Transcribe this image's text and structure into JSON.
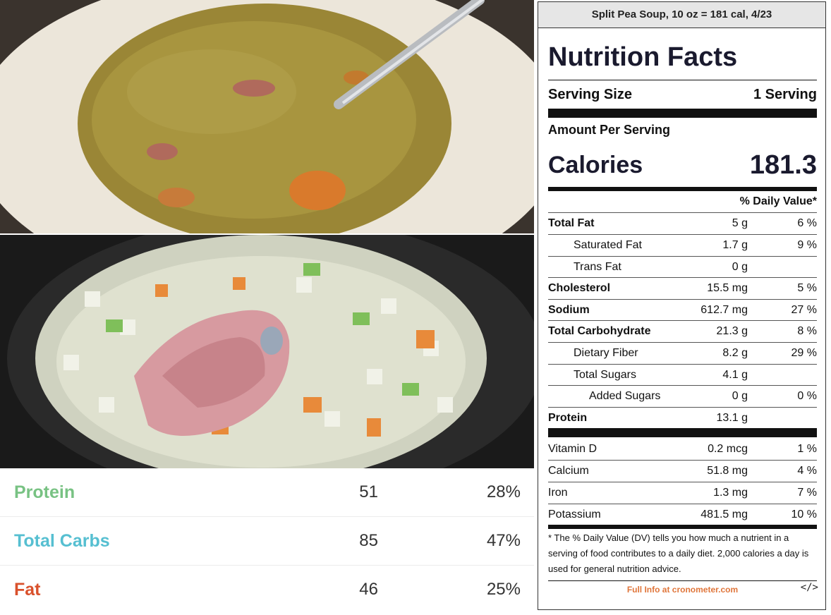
{
  "macros": [
    {
      "name": "Protein",
      "grams": "51",
      "percent": "28%",
      "color": "#78c283"
    },
    {
      "name": "Total Carbs",
      "grams": "85",
      "percent": "47%",
      "color": "#56bfd1"
    },
    {
      "name": "Fat",
      "grams": "46",
      "percent": "25%",
      "color": "#d9512c"
    }
  ],
  "label": {
    "header": "Split Pea Soup, 10 oz = 181 cal, 4/23",
    "title": "Nutrition Facts",
    "serving_size_label": "Serving Size",
    "serving_size_value": "1 Serving",
    "amount_per_serving": "Amount Per Serving",
    "calories_label": "Calories",
    "calories_value": "181.3",
    "daily_value_header": "% Daily Value*",
    "nutrients": [
      {
        "name": "Total Fat",
        "amount": "5 g",
        "dv": "6 %"
      },
      {
        "name": "Saturated Fat",
        "amount": "1.7 g",
        "dv": "9 %"
      },
      {
        "name": "Trans Fat",
        "amount": "0 g",
        "dv": ""
      },
      {
        "name": "Cholesterol",
        "amount": "15.5 mg",
        "dv": "5 %"
      },
      {
        "name": "Sodium",
        "amount": "612.7 mg",
        "dv": "27 %"
      },
      {
        "name": "Total Carbohydrate",
        "amount": "21.3 g",
        "dv": "8 %"
      },
      {
        "name": "Dietary Fiber",
        "amount": "8.2 g",
        "dv": "29 %"
      },
      {
        "name": "Total Sugars",
        "amount": "4.1 g",
        "dv": ""
      },
      {
        "name": "Added Sugars",
        "amount": "0 g",
        "dv": "0 %"
      },
      {
        "name": "Protein",
        "amount": "13.1 g",
        "dv": ""
      }
    ],
    "vitamins": [
      {
        "name": "Vitamin D",
        "amount": "0.2 mcg",
        "dv": "1 %"
      },
      {
        "name": "Calcium",
        "amount": "51.8 mg",
        "dv": "4 %"
      },
      {
        "name": "Iron",
        "amount": "1.3 mg",
        "dv": "7 %"
      },
      {
        "name": "Potassium",
        "amount": "481.5 mg",
        "dv": "10 %"
      }
    ],
    "footnote": "* The % Daily Value (DV) tells you how much a nutrient in a serving of food contributes to a daily diet. 2,000 calories a day is used for general nutrition advice.",
    "footer_link": "Full Info at cronometer.com",
    "embed_icon": "</>"
  }
}
